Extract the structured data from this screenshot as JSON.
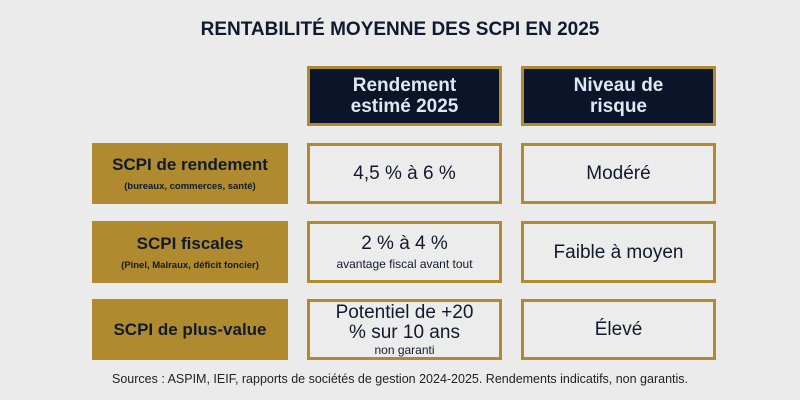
{
  "title": "RENTABILITÉ MOYENNE DES SCPI EN 2025",
  "headers": [
    "Rendement estimé 2025",
    "Niveau de risque"
  ],
  "rows": [
    {
      "label": "SCPI de rendement",
      "sub": "(bureaux, commerces, santé)",
      "yield": "4,5 % à 6 %",
      "yield_note": "",
      "risk": "Modéré"
    },
    {
      "label": "SCPI fiscales",
      "sub": "(Pinel, Malraux, déficit foncier)",
      "yield": "2 % à 4 %",
      "yield_note": "avantage fiscal avant tout",
      "risk": "Faible à moyen"
    },
    {
      "label": "SCPI de plus-value",
      "sub": "",
      "yield": "Potentiel de +20 % sur 10 ans",
      "yield_note": "non garanti",
      "risk": "Élevé"
    }
  ],
  "sources": "Sources : ASPIM, IEIF, rapports de sociétés de gestion 2024-2025. Rendements indicatifs, non garantis.",
  "colors": {
    "gold": "#b08a2e",
    "navy": "#0b1428",
    "background": "#ebebeb"
  }
}
